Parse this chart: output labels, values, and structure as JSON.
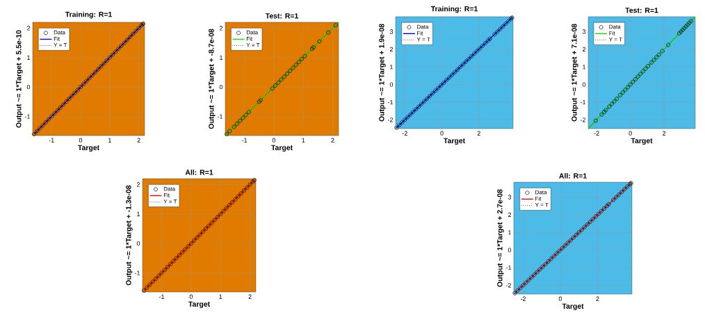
{
  "chart_data": [
    {
      "type": "scatter",
      "title": "Training: R=1",
      "xlabel": "Target",
      "ylabel": "Output ~= 1*Target + 5.5e-10",
      "xlim": [
        -1.65,
        2.2
      ],
      "ylim": [
        -1.65,
        2.2
      ],
      "xticks": [
        -1,
        0,
        1,
        2
      ],
      "yticks": [
        -1,
        0,
        1,
        2
      ],
      "grid": true,
      "legend": "top left",
      "series": [
        {
          "name": "Data",
          "type": "scatter",
          "marker": "circle",
          "color": "#000000",
          "x": [
            -1.6,
            -1.5,
            -1.4,
            -1.3,
            -1.2,
            -1.1,
            -1.0,
            -0.9,
            -0.8,
            -0.7,
            -0.6,
            -0.5,
            -0.4,
            -0.3,
            -0.2,
            -0.1,
            0,
            0.1,
            0.2,
            0.3,
            0.4,
            0.5,
            0.6,
            0.7,
            0.8,
            0.9,
            1.0,
            1.1,
            1.2,
            1.3,
            1.4,
            1.5,
            1.6,
            1.7,
            1.8,
            1.9,
            2.0,
            2.1,
            2.15
          ],
          "values": [
            -1.6,
            -1.5,
            -1.4,
            -1.3,
            -1.2,
            -1.1,
            -1.0,
            -0.9,
            -0.8,
            -0.7,
            -0.6,
            -0.5,
            -0.4,
            -0.3,
            -0.2,
            -0.1,
            0,
            0.1,
            0.2,
            0.3,
            0.4,
            0.5,
            0.6,
            0.7,
            0.8,
            0.9,
            1.0,
            1.1,
            1.2,
            1.3,
            1.4,
            1.5,
            1.6,
            1.7,
            1.8,
            1.9,
            2.0,
            2.1,
            2.15
          ]
        },
        {
          "name": "Fit",
          "type": "line",
          "color": "#0000ff",
          "x": [
            -1.6,
            2.15
          ],
          "values": [
            -1.6,
            2.15
          ]
        },
        {
          "name": "Y = T",
          "type": "line",
          "line_style": "dotted",
          "color": "#000000",
          "x": [
            -1.65,
            2.2
          ],
          "values": [
            -1.65,
            2.2
          ]
        }
      ]
    },
    {
      "type": "scatter",
      "title": "Test: R=1",
      "xlabel": "Target",
      "ylabel": "Output ~= 1*Target + -8.7e-08",
      "xlim": [
        -1.65,
        2.2
      ],
      "ylim": [
        -1.65,
        2.2
      ],
      "xticks": [
        -1,
        0,
        1,
        2
      ],
      "yticks": [
        -1,
        0,
        1,
        2
      ],
      "grid": true,
      "legend": "top left",
      "series": [
        {
          "name": "Data",
          "type": "scatter",
          "marker": "circle",
          "color": "#000000",
          "x": [
            -1.6,
            -1.5,
            -1.35,
            -1.25,
            -1.15,
            -1.05,
            -0.95,
            -0.85,
            -0.5,
            -0.45,
            -0.05,
            0.05,
            0.15,
            0.25,
            0.35,
            0.45,
            0.55,
            0.65,
            0.75,
            0.85,
            0.95,
            1.05,
            1.3,
            1.35,
            1.55,
            1.85,
            2.1
          ],
          "values": [
            -1.6,
            -1.5,
            -1.35,
            -1.25,
            -1.15,
            -1.05,
            -0.95,
            -0.85,
            -0.5,
            -0.45,
            -0.05,
            0.05,
            0.15,
            0.25,
            0.35,
            0.45,
            0.55,
            0.65,
            0.75,
            0.85,
            0.95,
            1.05,
            1.3,
            1.35,
            1.55,
            1.85,
            2.1
          ]
        },
        {
          "name": "Fit",
          "type": "line",
          "color": "#00ee00",
          "x": [
            -1.65,
            2.2
          ],
          "values": [
            -1.65,
            2.2
          ]
        },
        {
          "name": "Y = T",
          "type": "line",
          "line_style": "dotted",
          "color": "#000000",
          "x": [
            -1.65,
            2.2
          ],
          "values": [
            -1.65,
            2.2
          ]
        }
      ]
    },
    {
      "type": "scatter",
      "title": "Training: R=1",
      "xlabel": "Target",
      "ylabel": "Output ~= 1*Target + 1.9e-08",
      "xlim": [
        -2.5,
        3.85
      ],
      "ylim": [
        -2.5,
        3.85
      ],
      "xticks": [
        -2,
        0,
        2
      ],
      "yticks": [
        -2,
        -1,
        0,
        1,
        2,
        3
      ],
      "grid": true,
      "legend": "top left",
      "series": [
        {
          "name": "Data",
          "type": "scatter",
          "marker": "circle",
          "color": "#000000",
          "x": [
            -2.45,
            -2.3,
            -2.15,
            -2.0,
            -1.85,
            -1.7,
            -1.55,
            -1.4,
            -1.25,
            -1.1,
            -0.95,
            -0.8,
            -0.65,
            -0.5,
            -0.35,
            -0.2,
            -0.05,
            0.1,
            0.25,
            0.4,
            0.55,
            0.7,
            0.85,
            1.0,
            1.15,
            1.3,
            1.45,
            1.6,
            1.75,
            1.9,
            2.05,
            2.2,
            2.35,
            2.5,
            2.6,
            2.85,
            3.0,
            3.15,
            3.3,
            3.45,
            3.6,
            3.75,
            3.8
          ],
          "values": [
            -2.45,
            -2.3,
            -2.15,
            -2.0,
            -1.85,
            -1.7,
            -1.55,
            -1.4,
            -1.25,
            -1.1,
            -0.95,
            -0.8,
            -0.65,
            -0.5,
            -0.35,
            -0.2,
            -0.05,
            0.1,
            0.25,
            0.4,
            0.55,
            0.7,
            0.85,
            1.0,
            1.15,
            1.3,
            1.45,
            1.6,
            1.75,
            1.9,
            2.05,
            2.2,
            2.35,
            2.5,
            2.6,
            2.85,
            3.0,
            3.15,
            3.3,
            3.45,
            3.6,
            3.75,
            3.8
          ]
        },
        {
          "name": "Fit",
          "type": "line",
          "color": "#0000ff",
          "x": [
            -2.45,
            3.8
          ],
          "values": [
            -2.45,
            3.8
          ]
        },
        {
          "name": "Y = T",
          "type": "line",
          "line_style": "dotted",
          "color": "#000000",
          "x": [
            -2.5,
            3.85
          ],
          "values": [
            -2.5,
            3.85
          ]
        }
      ]
    },
    {
      "type": "scatter",
      "title": "Test: R=1",
      "xlabel": "Target",
      "ylabel": "Output ~= 1*Target + 7.1e-08",
      "xlim": [
        -2.5,
        3.85
      ],
      "ylim": [
        -2.5,
        3.85
      ],
      "xticks": [
        -2,
        0,
        2
      ],
      "yticks": [
        -2,
        -1,
        0,
        1,
        2,
        3
      ],
      "grid": true,
      "legend": "top left",
      "series": [
        {
          "name": "Data",
          "type": "scatter",
          "marker": "circle",
          "color": "#000000",
          "x": [
            -2.05,
            -1.7,
            -1.55,
            -1.45,
            -1.25,
            -1.1,
            -0.95,
            -0.8,
            -0.6,
            -0.45,
            -0.3,
            -0.15,
            0,
            0.15,
            0.3,
            0.45,
            0.6,
            0.75,
            0.9,
            1.05,
            1.25,
            1.4,
            1.55,
            1.7,
            1.9,
            2.25,
            2.9,
            3.0,
            3.1,
            3.2,
            3.3,
            3.4,
            3.5,
            3.6
          ],
          "values": [
            -2.05,
            -1.7,
            -1.55,
            -1.45,
            -1.25,
            -1.1,
            -0.95,
            -0.8,
            -0.6,
            -0.45,
            -0.3,
            -0.15,
            0,
            0.15,
            0.3,
            0.45,
            0.6,
            0.75,
            0.9,
            1.05,
            1.25,
            1.4,
            1.55,
            1.7,
            1.9,
            2.25,
            2.9,
            3.0,
            3.1,
            3.2,
            3.3,
            3.4,
            3.5,
            3.6
          ]
        },
        {
          "name": "Fit",
          "type": "line",
          "color": "#00ee00",
          "x": [
            -2.5,
            3.85
          ],
          "values": [
            -2.5,
            3.85
          ]
        },
        {
          "name": "Y = T",
          "type": "line",
          "line_style": "dotted",
          "color": "#000000",
          "x": [
            -2.5,
            3.85
          ],
          "values": [
            -2.5,
            3.85
          ]
        }
      ]
    },
    {
      "type": "scatter",
      "title": "All: R=1",
      "xlabel": "Target",
      "ylabel": "Output ~= 1*Target + -1.3e-08",
      "xlim": [
        -1.65,
        2.2
      ],
      "ylim": [
        -1.65,
        2.2
      ],
      "xticks": [
        -1,
        0,
        1,
        2
      ],
      "yticks": [
        -1,
        0,
        1,
        2
      ],
      "grid": true,
      "legend": "top left",
      "series": [
        {
          "name": "Data",
          "type": "scatter",
          "marker": "circle",
          "color": "#000000",
          "x": [
            -1.6,
            -1.5,
            -1.4,
            -1.3,
            -1.2,
            -1.1,
            -1.0,
            -0.9,
            -0.8,
            -0.7,
            -0.6,
            -0.5,
            -0.4,
            -0.3,
            -0.2,
            -0.1,
            0,
            0.1,
            0.2,
            0.3,
            0.4,
            0.5,
            0.6,
            0.7,
            0.8,
            0.9,
            1.0,
            1.1,
            1.2,
            1.3,
            1.4,
            1.5,
            1.6,
            1.7,
            1.8,
            1.9,
            2.0,
            2.1,
            2.15
          ],
          "values": [
            -1.6,
            -1.5,
            -1.4,
            -1.3,
            -1.2,
            -1.1,
            -1.0,
            -0.9,
            -0.8,
            -0.7,
            -0.6,
            -0.5,
            -0.4,
            -0.3,
            -0.2,
            -0.1,
            0,
            0.1,
            0.2,
            0.3,
            0.4,
            0.5,
            0.6,
            0.7,
            0.8,
            0.9,
            1.0,
            1.1,
            1.2,
            1.3,
            1.4,
            1.5,
            1.6,
            1.7,
            1.8,
            1.9,
            2.0,
            2.1,
            2.15
          ]
        },
        {
          "name": "Fit",
          "type": "line",
          "color": "#ff0000",
          "x": [
            -1.6,
            2.15
          ],
          "values": [
            -1.6,
            2.15
          ]
        },
        {
          "name": "Y = T",
          "type": "line",
          "line_style": "dotted",
          "color": "#000000",
          "x": [
            -1.65,
            2.2
          ],
          "values": [
            -1.65,
            2.2
          ]
        }
      ]
    },
    {
      "type": "scatter",
      "title": "All: R=1",
      "xlabel": "Target",
      "ylabel": "Output ~= 1*Target + 2.7e-08",
      "xlim": [
        -2.5,
        3.85
      ],
      "ylim": [
        -2.5,
        3.85
      ],
      "xticks": [
        -2,
        0,
        2
      ],
      "yticks": [
        -2,
        -1,
        0,
        1,
        2,
        3
      ],
      "grid": true,
      "legend": "top left",
      "series": [
        {
          "name": "Data",
          "type": "scatter",
          "marker": "circle",
          "color": "#000000",
          "x": [
            -2.45,
            -2.3,
            -2.15,
            -2.0,
            -1.85,
            -1.7,
            -1.55,
            -1.4,
            -1.25,
            -1.1,
            -0.95,
            -0.8,
            -0.65,
            -0.5,
            -0.35,
            -0.2,
            -0.05,
            0.1,
            0.25,
            0.4,
            0.55,
            0.7,
            0.85,
            1.0,
            1.15,
            1.3,
            1.45,
            1.6,
            1.75,
            1.9,
            2.05,
            2.2,
            2.35,
            2.5,
            2.6,
            2.85,
            3.0,
            3.15,
            3.3,
            3.45,
            3.6,
            3.75,
            3.8
          ],
          "values": [
            -2.45,
            -2.3,
            -2.15,
            -2.0,
            -1.85,
            -1.7,
            -1.55,
            -1.4,
            -1.25,
            -1.1,
            -0.95,
            -0.8,
            -0.65,
            -0.5,
            -0.35,
            -0.2,
            -0.05,
            0.1,
            0.25,
            0.4,
            0.55,
            0.7,
            0.85,
            1.0,
            1.15,
            1.3,
            1.45,
            1.6,
            1.75,
            1.9,
            2.05,
            2.2,
            2.35,
            2.5,
            2.6,
            2.85,
            3.0,
            3.15,
            3.3,
            3.45,
            3.6,
            3.75,
            3.8
          ]
        },
        {
          "name": "Fit",
          "type": "line",
          "color": "#ff0000",
          "x": [
            -2.45,
            3.8
          ],
          "values": [
            -2.45,
            3.8
          ]
        },
        {
          "name": "Y = T",
          "type": "line",
          "line_style": "dotted",
          "color": "#000000",
          "x": [
            -2.5,
            3.85
          ],
          "values": [
            -2.5,
            3.85
          ]
        }
      ]
    }
  ]
}
